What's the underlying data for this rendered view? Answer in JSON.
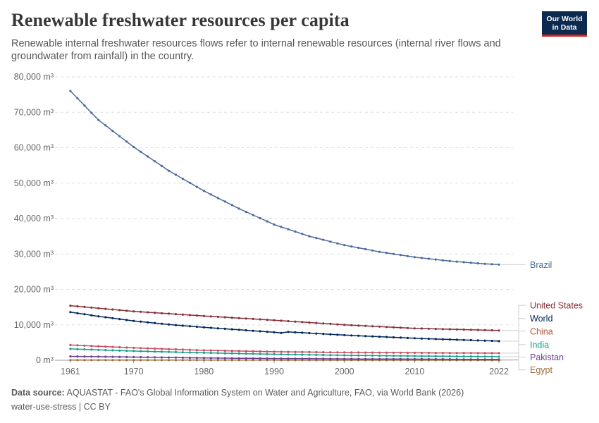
{
  "header": {
    "title": "Renewable freshwater resources per capita",
    "subtitle": "Renewable internal freshwater resources flows refer to internal renewable resources (internal river flows and groundwater from rainfall) in the country.",
    "logo_line1": "Our World",
    "logo_line2": "in Data"
  },
  "footer": {
    "source_label": "Data source:",
    "source_text": "AQUASTAT - FAO's Global Information System on Water and Agriculture, FAO, via World Bank (2026)",
    "slug": "water-use-stress | CC BY"
  },
  "chart_data": {
    "type": "line",
    "title": "Renewable freshwater resources per capita",
    "xlabel": "",
    "ylabel": "",
    "xlim": [
      1959,
      2024
    ],
    "ylim": [
      0,
      80000
    ],
    "x_ticks": [
      1961,
      1970,
      1980,
      1990,
      2000,
      2010,
      2022
    ],
    "x_tick_labels": [
      "1961",
      "1970",
      "1980",
      "1990",
      "2000",
      "2010",
      "2022"
    ],
    "y_ticks": [
      0,
      10000,
      20000,
      30000,
      40000,
      50000,
      60000,
      70000,
      80000
    ],
    "y_tick_labels": [
      "0 m³",
      "10,000 m³",
      "20,000 m³",
      "30,000 m³",
      "40,000 m³",
      "50,000 m³",
      "60,000 m³",
      "70,000 m³",
      "80,000 m³"
    ],
    "grid": true,
    "legend": "right (line-end labels)",
    "series": [
      {
        "name": "Brazil",
        "color": "#4c6a9c",
        "points": [
          [
            1961,
            76000
          ],
          [
            1965,
            67800
          ],
          [
            1970,
            60200
          ],
          [
            1975,
            53500
          ],
          [
            1980,
            47800
          ],
          [
            1985,
            42800
          ],
          [
            1990,
            38300
          ],
          [
            1995,
            35000
          ],
          [
            2000,
            32500
          ],
          [
            2005,
            30600
          ],
          [
            2010,
            29100
          ],
          [
            2015,
            28000
          ],
          [
            2020,
            27200
          ],
          [
            2022,
            27000
          ]
        ]
      },
      {
        "name": "United States",
        "color": "#883039",
        "points": [
          [
            1961,
            15400
          ],
          [
            1970,
            13800
          ],
          [
            1980,
            12500
          ],
          [
            1990,
            11300
          ],
          [
            2000,
            10000
          ],
          [
            2010,
            9000
          ],
          [
            2022,
            8400
          ]
        ]
      },
      {
        "name": "World",
        "color": "#00295b",
        "points": [
          [
            1961,
            13600
          ],
          [
            1965,
            12400
          ],
          [
            1970,
            11100
          ],
          [
            1975,
            10100
          ],
          [
            1980,
            9300
          ],
          [
            1985,
            8600
          ],
          [
            1990,
            7900
          ],
          [
            1991,
            7700
          ],
          [
            1992,
            8000
          ],
          [
            2000,
            7100
          ],
          [
            2010,
            6200
          ],
          [
            2022,
            5400
          ]
        ]
      },
      {
        "name": "China",
        "color": "#c15065",
        "points": [
          [
            1961,
            4300
          ],
          [
            1970,
            3500
          ],
          [
            1980,
            2800
          ],
          [
            1990,
            2400
          ],
          [
            2000,
            2200
          ],
          [
            2010,
            2100
          ],
          [
            2022,
            2000
          ]
        ]
      },
      {
        "name": "India",
        "color": "#18a088",
        "points": [
          [
            1961,
            3200
          ],
          [
            1970,
            2600
          ],
          [
            1980,
            2100
          ],
          [
            1990,
            1700
          ],
          [
            2000,
            1400
          ],
          [
            2010,
            1200
          ],
          [
            2022,
            1000
          ]
        ]
      },
      {
        "name": "Pakistan",
        "color": "#6d3e91",
        "points": [
          [
            1961,
            1100
          ],
          [
            1970,
            900
          ],
          [
            1980,
            650
          ],
          [
            1990,
            480
          ],
          [
            2000,
            380
          ],
          [
            2010,
            320
          ],
          [
            2022,
            230
          ]
        ]
      },
      {
        "name": "Egypt",
        "color": "#996d39",
        "points": [
          [
            1961,
            40
          ],
          [
            1990,
            30
          ],
          [
            2022,
            10
          ]
        ]
      }
    ],
    "labels": [
      {
        "name": "Brazil",
        "text": "Brazil",
        "color": "#4c6a9c",
        "at": 27000
      },
      {
        "name": "United States",
        "text": "United States",
        "color": "#883039",
        "at": 15500
      },
      {
        "name": "World",
        "text": "World",
        "color": "#00295b",
        "at": 11800
      },
      {
        "name": "China",
        "text": "China",
        "color": "#b5533c",
        "at": 8200
      },
      {
        "name": "India",
        "text": "India",
        "color": "#18a088",
        "at": 4400
      },
      {
        "name": "Pakistan",
        "text": "Pakistan",
        "color": "#6d3e91",
        "at": 900
      },
      {
        "name": "Egypt",
        "text": "Egypt",
        "color": "#996d39",
        "at": -2700
      }
    ]
  }
}
